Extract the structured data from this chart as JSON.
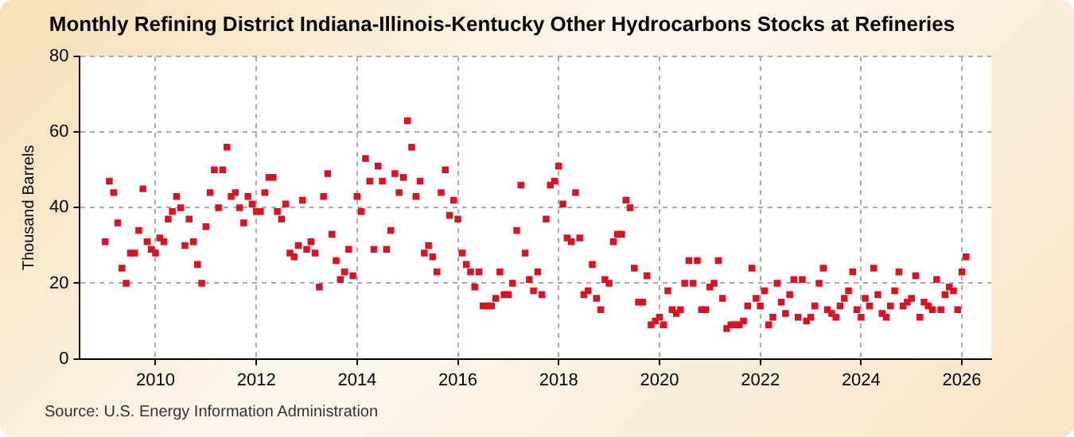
{
  "chart_data": {
    "type": "scatter",
    "title": "Monthly Refining District Indiana-Illinois-Kentucky Other Hydrocarbons Stocks at Refineries",
    "ylabel": "Thousand Barrels",
    "annotations": [
      "Source: U.S. Energy Information Administration"
    ],
    "x": [
      "2009-01",
      "2009-02",
      "2009-03",
      "2009-04",
      "2009-05",
      "2009-06",
      "2009-07",
      "2009-08",
      "2009-09",
      "2009-10",
      "2009-11",
      "2009-12",
      "2010-01",
      "2010-02",
      "2010-03",
      "2010-04",
      "2010-05",
      "2010-06",
      "2010-07",
      "2010-08",
      "2010-09",
      "2010-10",
      "2010-11",
      "2010-12",
      "2011-01",
      "2011-02",
      "2011-03",
      "2011-04",
      "2011-05",
      "2011-06",
      "2011-07",
      "2011-08",
      "2011-09",
      "2011-10",
      "2011-11",
      "2011-12",
      "2012-01",
      "2012-02",
      "2012-03",
      "2012-04",
      "2012-05",
      "2012-06",
      "2012-07",
      "2012-08",
      "2012-09",
      "2012-10",
      "2012-11",
      "2012-12",
      "2013-01",
      "2013-02",
      "2013-03",
      "2013-04",
      "2013-05",
      "2013-06",
      "2013-07",
      "2013-08",
      "2013-09",
      "2013-10",
      "2013-11",
      "2013-12",
      "2014-01",
      "2014-02",
      "2014-03",
      "2014-04",
      "2014-05",
      "2014-06",
      "2014-07",
      "2014-08",
      "2014-09",
      "2014-10",
      "2014-11",
      "2014-12",
      "2015-01",
      "2015-02",
      "2015-03",
      "2015-04",
      "2015-05",
      "2015-06",
      "2015-07",
      "2015-08",
      "2015-09",
      "2015-10",
      "2015-11",
      "2015-12",
      "2016-01",
      "2016-02",
      "2016-03",
      "2016-04",
      "2016-05",
      "2016-06",
      "2016-07",
      "2016-08",
      "2016-09",
      "2016-10",
      "2016-11",
      "2016-12",
      "2017-01",
      "2017-02",
      "2017-03",
      "2017-04",
      "2017-05",
      "2017-06",
      "2017-07",
      "2017-08",
      "2017-09",
      "2017-10",
      "2017-11",
      "2017-12",
      "2018-01",
      "2018-02",
      "2018-03",
      "2018-04",
      "2018-05",
      "2018-06",
      "2018-07",
      "2018-08",
      "2018-09",
      "2018-10",
      "2018-11",
      "2018-12",
      "2019-01",
      "2019-02",
      "2019-03",
      "2019-04",
      "2019-05",
      "2019-06",
      "2019-07",
      "2019-08",
      "2019-09",
      "2019-10",
      "2019-11",
      "2019-12",
      "2020-01",
      "2020-02",
      "2020-03",
      "2020-04",
      "2020-05",
      "2020-06",
      "2020-07",
      "2020-08",
      "2020-09",
      "2020-10",
      "2020-11",
      "2020-12",
      "2021-01",
      "2021-02",
      "2021-03",
      "2021-04",
      "2021-05",
      "2021-06",
      "2021-07",
      "2021-08",
      "2021-09",
      "2021-10",
      "2021-11",
      "2021-12",
      "2022-01",
      "2022-02",
      "2022-03",
      "2022-04",
      "2022-05",
      "2022-06",
      "2022-07",
      "2022-08",
      "2022-09",
      "2022-10",
      "2022-11",
      "2022-12",
      "2023-01",
      "2023-02",
      "2023-03",
      "2023-04",
      "2023-05",
      "2023-06",
      "2023-07",
      "2023-08",
      "2023-09",
      "2023-10",
      "2023-11",
      "2023-12",
      "2024-01",
      "2024-02",
      "2024-03",
      "2024-04",
      "2024-05",
      "2024-06",
      "2024-07",
      "2024-08",
      "2024-09",
      "2024-10",
      "2024-11",
      "2024-12",
      "2025-01",
      "2025-02",
      "2025-03",
      "2025-04",
      "2025-05",
      "2025-06",
      "2025-07",
      "2025-08",
      "2025-09",
      "2025-10",
      "2025-11",
      "2025-12",
      "2026-01",
      "2026-02"
    ],
    "series": [
      {
        "color": "#dd1122",
        "values": [
          31,
          47,
          44,
          36,
          24,
          20,
          28,
          28,
          34,
          45,
          31,
          29,
          28,
          32,
          31,
          37,
          39,
          43,
          40,
          30,
          37,
          31,
          25,
          20,
          35,
          44,
          50,
          40,
          50,
          56,
          43,
          44,
          40,
          36,
          43,
          41,
          39,
          39,
          44,
          48,
          48,
          39,
          37,
          41,
          28,
          27,
          30,
          42,
          29,
          31,
          28,
          19,
          43,
          49,
          33,
          26,
          21,
          23,
          29,
          22,
          43,
          39,
          53,
          47,
          29,
          51,
          47,
          29,
          34,
          49,
          44,
          48,
          63,
          56,
          43,
          47,
          28,
          30,
          27,
          23,
          44,
          50,
          38,
          42,
          37,
          28,
          25,
          23,
          19,
          23,
          14,
          14,
          14,
          16,
          23,
          17,
          17,
          20,
          34,
          46,
          28,
          21,
          18,
          23,
          17,
          37,
          46,
          47,
          51,
          41,
          32,
          31,
          44,
          32,
          17,
          18,
          25,
          16,
          13,
          21,
          20,
          31,
          33,
          33,
          42,
          40,
          24,
          15,
          15,
          22,
          9,
          10,
          11,
          9,
          18,
          13,
          12,
          13,
          20,
          26,
          20,
          26,
          13,
          13,
          19,
          20,
          26,
          16,
          8,
          9,
          9,
          9,
          10,
          14,
          24,
          16,
          14,
          18,
          9,
          11,
          20,
          15,
          12,
          17,
          21,
          11,
          21,
          10,
          11,
          14,
          20,
          24,
          13,
          12,
          11,
          14,
          16,
          18,
          23,
          13,
          11,
          16,
          14,
          24,
          17,
          12,
          11,
          14,
          18,
          23,
          14,
          15,
          16,
          22,
          11,
          15,
          14,
          13,
          21,
          13,
          17,
          19,
          18,
          13,
          23,
          27
        ]
      }
    ],
    "xlim": [
      "2008-07",
      "2026-08"
    ],
    "xticks": [
      "2010",
      "2012",
      "2014",
      "2016",
      "2018",
      "2020",
      "2022",
      "2024",
      "2026"
    ],
    "ylim": [
      0,
      80
    ],
    "yticks": [
      0,
      20,
      40,
      60,
      80
    ],
    "grid": true,
    "marker": "square",
    "legend": false
  }
}
